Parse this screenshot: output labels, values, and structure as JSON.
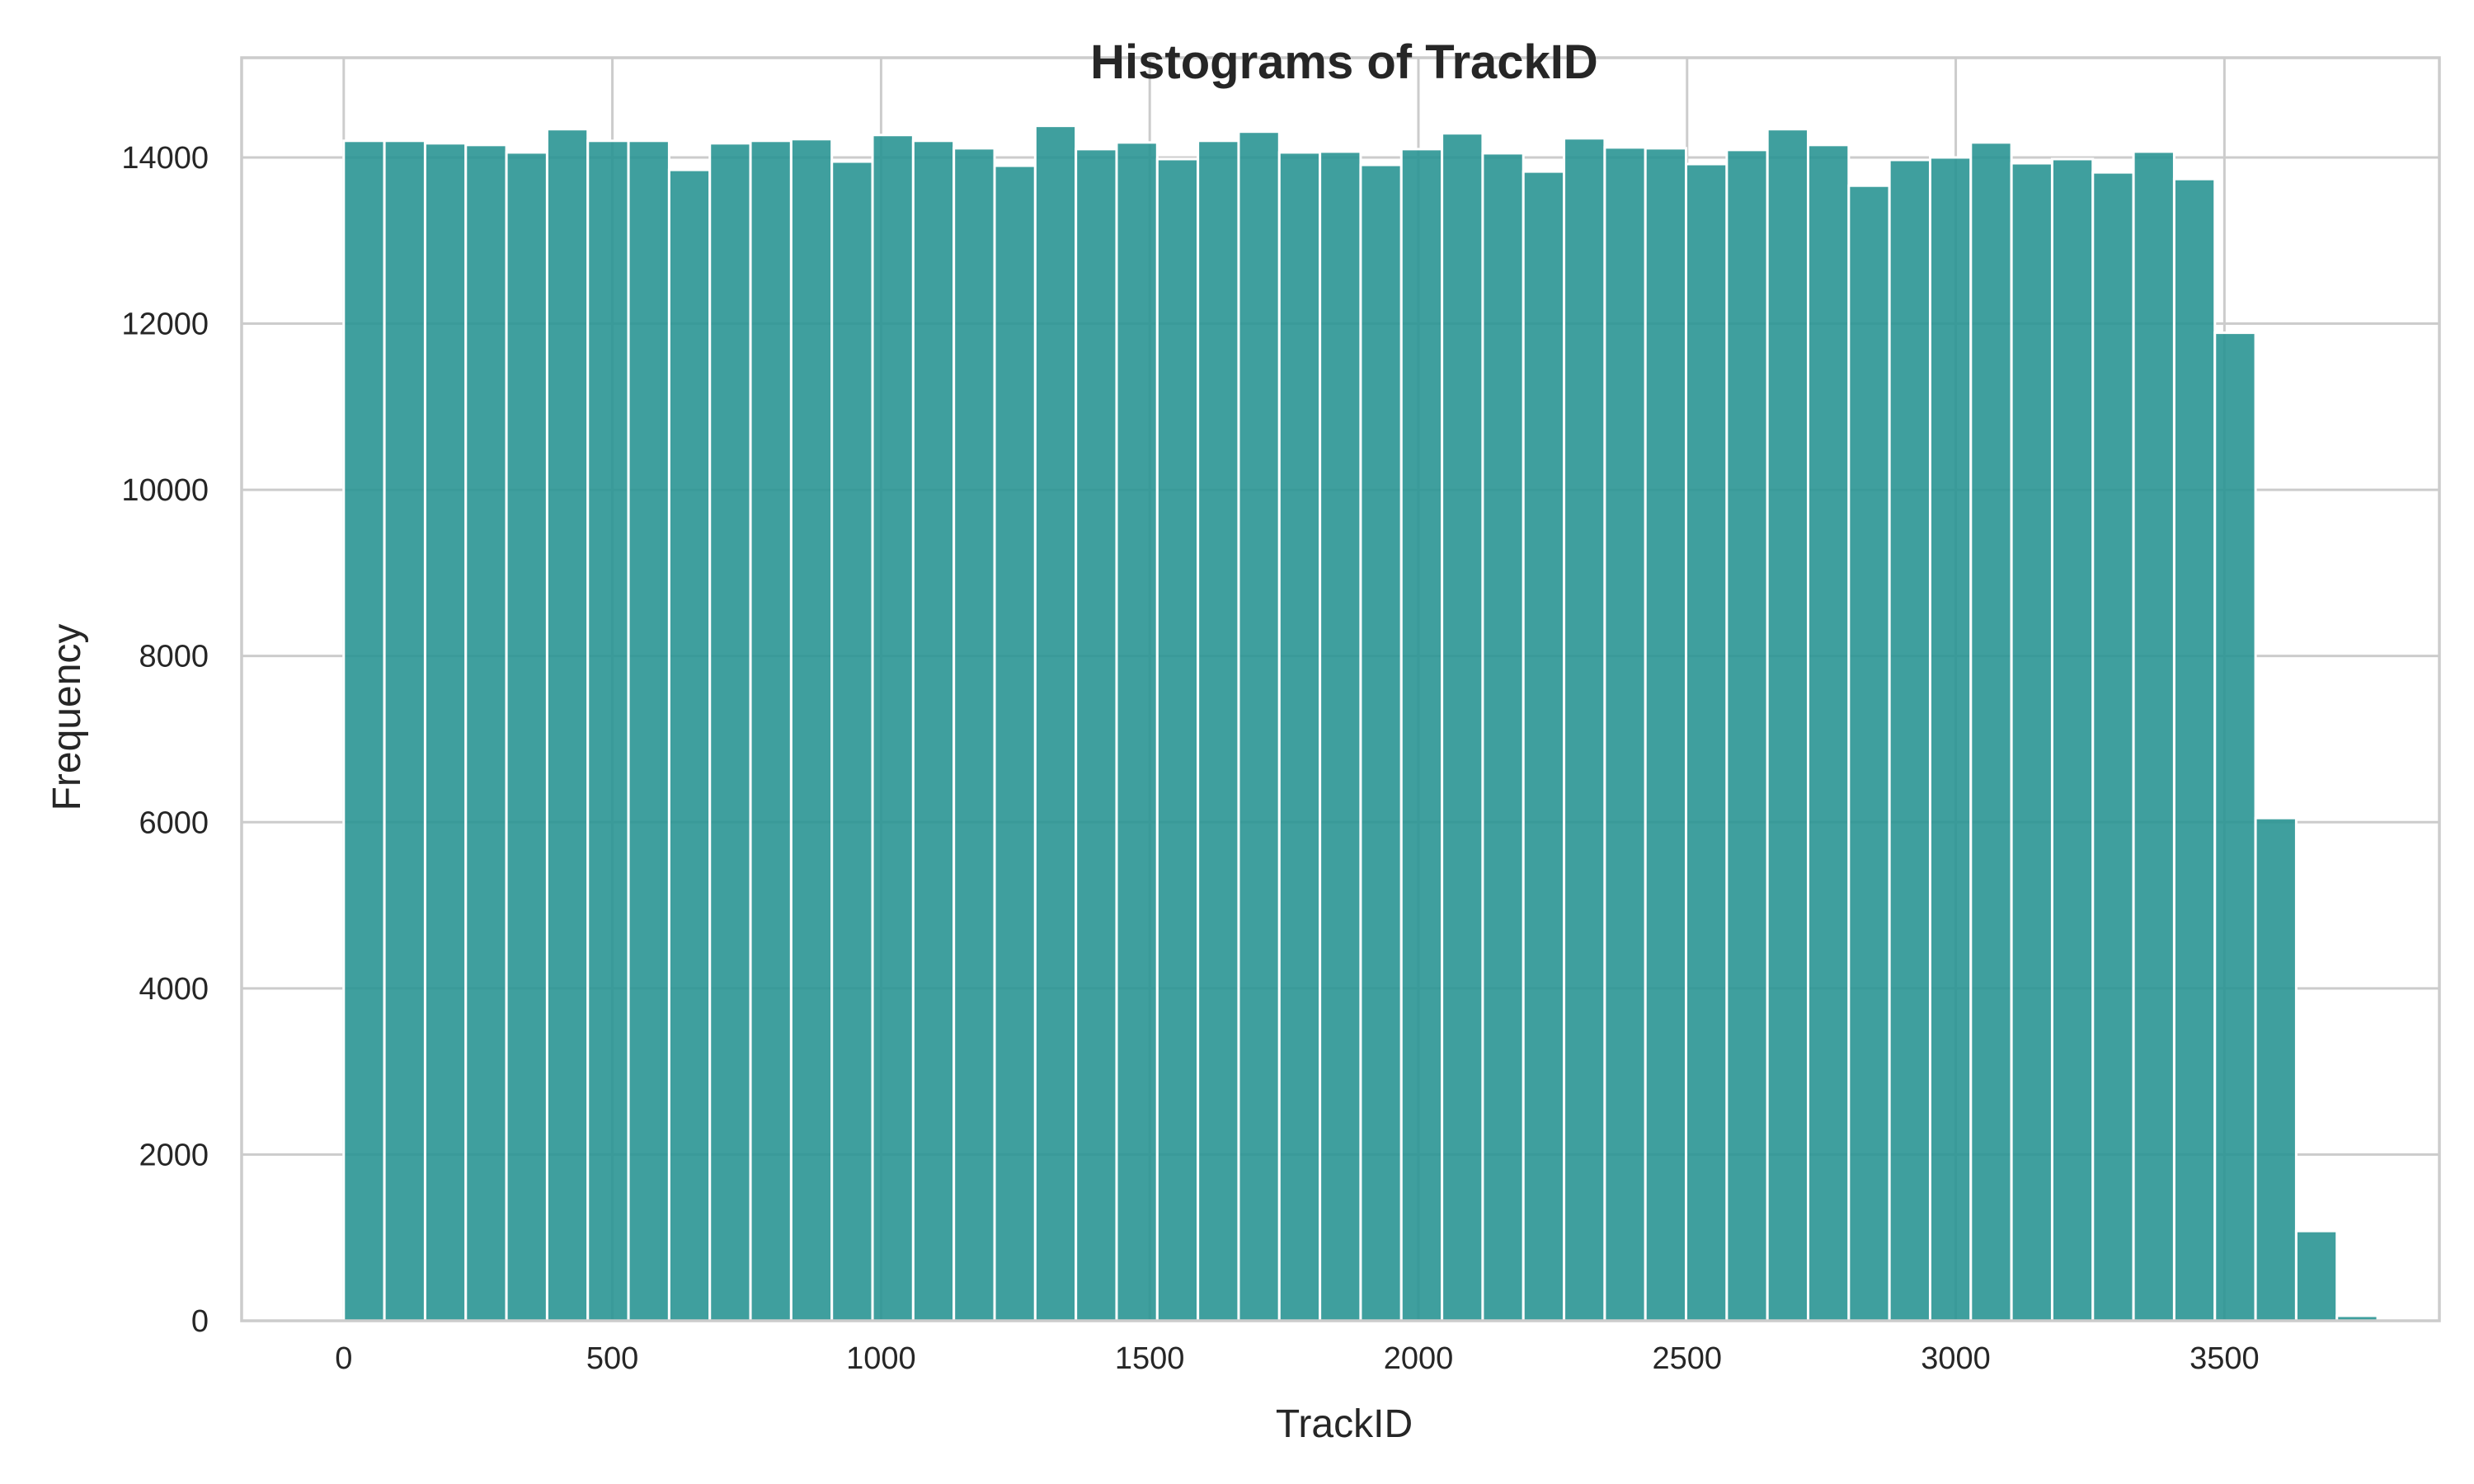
{
  "chart_data": {
    "type": "bar",
    "title": "Histograms of TrackID",
    "xlabel": "TrackID",
    "ylabel": "Frequency",
    "xlim": [
      -190,
      3900
    ],
    "ylim": [
      0,
      15200
    ],
    "xticks": [
      0,
      500,
      1000,
      1500,
      2000,
      2500,
      3000,
      3500
    ],
    "yticks": [
      0,
      2000,
      4000,
      6000,
      8000,
      10000,
      12000,
      14000
    ],
    "grid": true,
    "color": "#2a9593",
    "bin_start": 0,
    "bin_width": 75.7,
    "values": [
      14200,
      14200,
      14170,
      14150,
      14060,
      14340,
      14200,
      14200,
      13850,
      14170,
      14200,
      14220,
      13950,
      14270,
      14200,
      14110,
      13900,
      14380,
      14100,
      14180,
      13980,
      14200,
      14310,
      14060,
      14070,
      13910,
      14100,
      14290,
      14050,
      13830,
      14230,
      14120,
      14110,
      13920,
      14090,
      14340,
      14150,
      13660,
      13970,
      14000,
      14180,
      13930,
      13980,
      13820,
      14070,
      13740,
      11890,
      6050,
      1080,
      60
    ]
  }
}
